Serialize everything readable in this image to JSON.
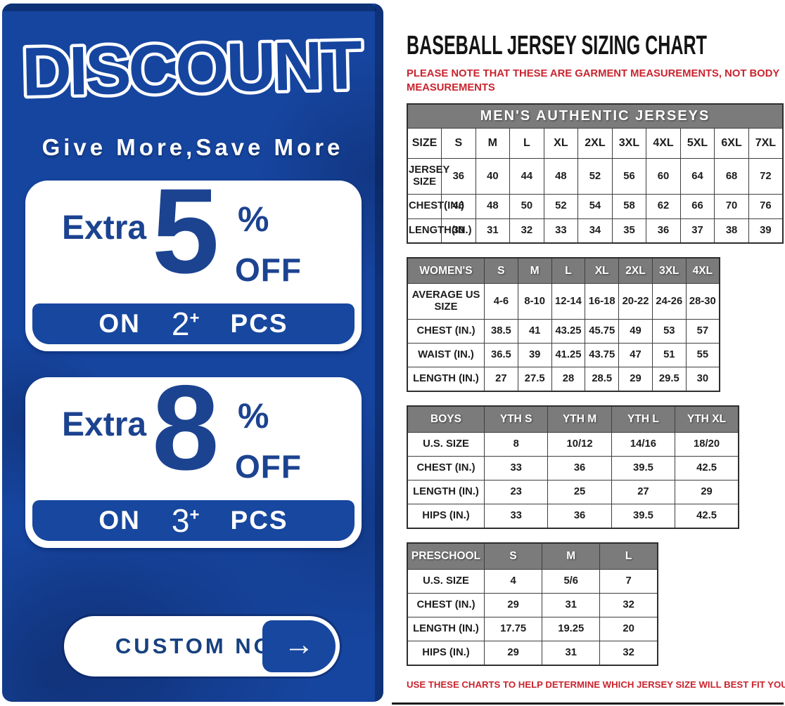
{
  "banner": {
    "title": "DISCOUNT",
    "subtitle": "Give More,Save More",
    "offers": [
      {
        "prefix": "Extra",
        "value": "5",
        "percent": "%",
        "off": "OFF",
        "on": "ON",
        "qty": "2",
        "plus": "+",
        "pcs": "PCS"
      },
      {
        "prefix": "Extra",
        "value": "8",
        "percent": "%",
        "off": "OFF",
        "on": "ON",
        "qty": "3",
        "plus": "+",
        "pcs": "PCS"
      }
    ],
    "cta": {
      "label": "CUSTOM NOW",
      "arrow": "→"
    }
  },
  "chart": {
    "title": "BASEBALL JERSEY SIZING CHART",
    "note_top": "PLEASE NOTE THAT THESE ARE GARMENT MEASUREMENTS, NOT BODY MEASUREMENTS",
    "note_bottom": "USE THESE CHARTS TO HELP DETERMINE WHICH JERSEY SIZE WILL BEST FIT YOU.",
    "tables": [
      {
        "name": "mens",
        "banner": "MEN'S AUTHENTIC JERSEYS",
        "gray": false,
        "columns": [
          "SIZE",
          "S",
          "M",
          "L",
          "XL",
          "2XL",
          "3XL",
          "4XL",
          "5XL",
          "6XL",
          "7XL"
        ],
        "rows": [
          [
            "JERSEY SIZE",
            "36",
            "40",
            "44",
            "48",
            "52",
            "56",
            "60",
            "64",
            "68",
            "72"
          ],
          [
            "CHEST(IN.)",
            "46",
            "48",
            "50",
            "52",
            "54",
            "58",
            "62",
            "66",
            "70",
            "76"
          ],
          [
            "LENGTH(IN.)",
            "30",
            "31",
            "32",
            "33",
            "34",
            "35",
            "36",
            "37",
            "38",
            "39"
          ]
        ]
      },
      {
        "name": "womens",
        "gray": true,
        "columns": [
          "WOMEN'S",
          "S",
          "M",
          "L",
          "XL",
          "2XL",
          "3XL",
          "4XL"
        ],
        "rows": [
          [
            "AVERAGE US SIZE",
            "4-6",
            "8-10",
            "12-14",
            "16-18",
            "20-22",
            "24-26",
            "28-30"
          ],
          [
            "CHEST (IN.)",
            "38.5",
            "41",
            "43.25",
            "45.75",
            "49",
            "53",
            "57"
          ],
          [
            "WAIST (IN.)",
            "36.5",
            "39",
            "41.25",
            "43.75",
            "47",
            "51",
            "55"
          ],
          [
            "LENGTH (IN.)",
            "27",
            "27.5",
            "28",
            "28.5",
            "29",
            "29.5",
            "30"
          ]
        ]
      },
      {
        "name": "boys",
        "gray": true,
        "columns": [
          "BOYS",
          "YTH S",
          "YTH M",
          "YTH L",
          "YTH XL"
        ],
        "rows": [
          [
            "U.S. SIZE",
            "8",
            "10/12",
            "14/16",
            "18/20"
          ],
          [
            "CHEST (IN.)",
            "33",
            "36",
            "39.5",
            "42.5"
          ],
          [
            "LENGTH (IN.)",
            "23",
            "25",
            "27",
            "29"
          ],
          [
            "HIPS (IN.)",
            "33",
            "36",
            "39.5",
            "42.5"
          ]
        ]
      },
      {
        "name": "preschool",
        "gray": true,
        "columns": [
          "PRESCHOOL",
          "S",
          "M",
          "L"
        ],
        "rows": [
          [
            "U.S. SIZE",
            "4",
            "5/6",
            "7"
          ],
          [
            "CHEST (IN.)",
            "29",
            "31",
            "32"
          ],
          [
            "LENGTH (IN.)",
            "17.75",
            "19.25",
            "20"
          ],
          [
            "HIPS (IN.)",
            "29",
            "31",
            "32"
          ]
        ]
      }
    ]
  },
  "colors": {
    "brand_blue": "#16459f",
    "deep_blue": "#1c4390",
    "note_red": "#c9242e",
    "header_gray": "#7b7b7b"
  }
}
